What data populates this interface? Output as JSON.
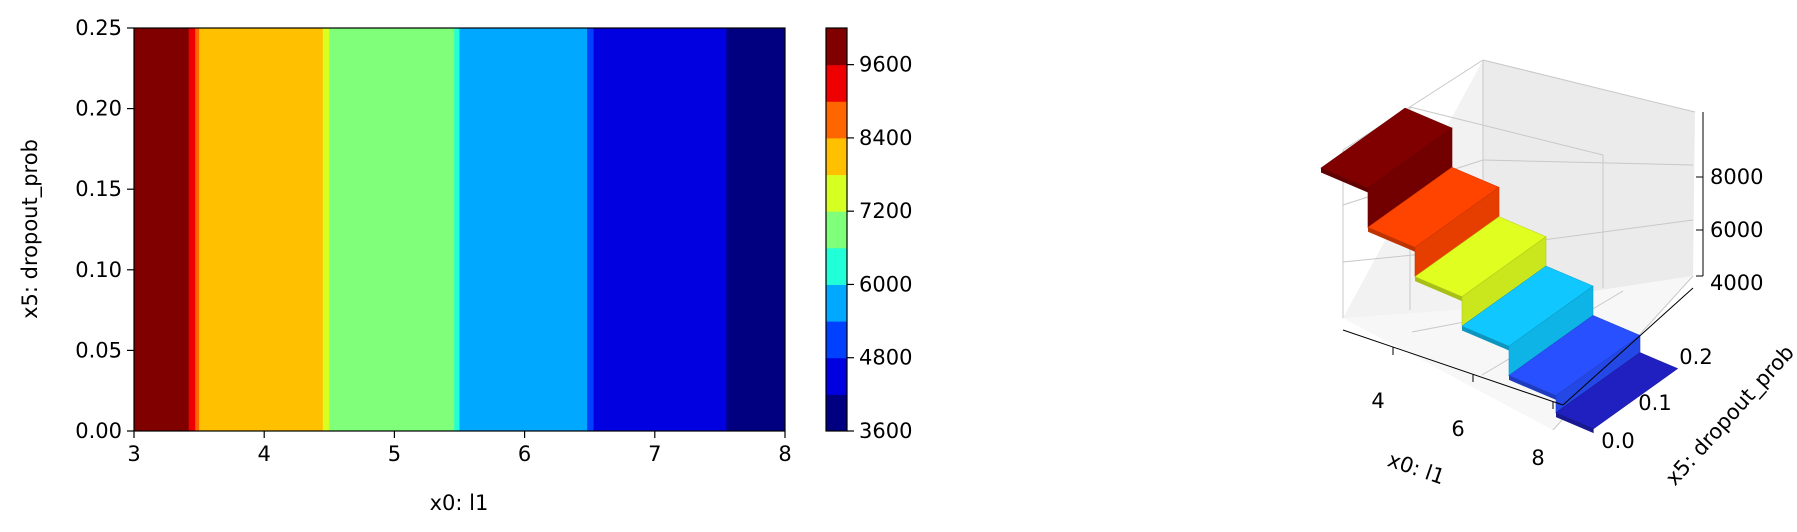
{
  "chart_data": [
    {
      "type": "heatmap",
      "subtype": "filled-contour",
      "xlabel": "x0: l1",
      "ylabel": "x5: dropout_prob",
      "xlim": [
        3,
        8
      ],
      "ylim": [
        0,
        0.25
      ],
      "xticks": [
        "3",
        "4",
        "5",
        "6",
        "7",
        "8"
      ],
      "yticks": [
        "0.00",
        "0.05",
        "0.10",
        "0.15",
        "0.20",
        "0.25"
      ],
      "bands": [
        {
          "x0": 3.0,
          "x1": 3.42,
          "level": 9900
        },
        {
          "x0": 3.42,
          "x1": 3.47,
          "level": 9300
        },
        {
          "x0": 3.47,
          "x1": 3.5,
          "level": 8700
        },
        {
          "x0": 3.5,
          "x1": 4.45,
          "level": 8100
        },
        {
          "x0": 4.45,
          "x1": 4.5,
          "level": 7500
        },
        {
          "x0": 4.5,
          "x1": 5.46,
          "level": 6900
        },
        {
          "x0": 5.46,
          "x1": 5.5,
          "level": 6300
        },
        {
          "x0": 5.5,
          "x1": 6.48,
          "level": 5700
        },
        {
          "x0": 6.48,
          "x1": 6.53,
          "level": 5100
        },
        {
          "x0": 6.53,
          "x1": 7.55,
          "level": 4500
        },
        {
          "x0": 7.55,
          "x1": 8.0,
          "level": 3900
        }
      ],
      "colorbar": {
        "levels": [
          3600,
          4200,
          4800,
          5400,
          6000,
          6600,
          7200,
          7800,
          8400,
          9000,
          9600,
          10200
        ],
        "ticks": [
          "3600",
          "4800",
          "6000",
          "7200",
          "8400",
          "9600"
        ],
        "colors": [
          "#000080",
          "#0000e0",
          "#0040ff",
          "#00a8ff",
          "#20ffd8",
          "#7fff7a",
          "#d6ff22",
          "#ffc000",
          "#ff6600",
          "#ee0000",
          "#800000"
        ]
      },
      "grid": false
    },
    {
      "type": "surface-3d",
      "xlabel": "x0: l1",
      "ylabel": "x5: dropout_prob",
      "xticks": [
        "4",
        "6",
        "8"
      ],
      "yticks": [
        "0.0",
        "0.1",
        "0.2"
      ],
      "zticks": [
        "4000",
        "6000",
        "8000"
      ],
      "steps": [
        {
          "x0": 3,
          "x1": 4,
          "z": 9800,
          "color": "#800000"
        },
        {
          "x0": 4,
          "x1": 5,
          "z": 8200,
          "color": "#ff4400"
        },
        {
          "x0": 5,
          "x1": 6,
          "z": 7000,
          "color": "#e0ff20"
        },
        {
          "x0": 6,
          "x1": 7,
          "z": 5800,
          "color": "#10c8ff"
        },
        {
          "x0": 7,
          "x1": 8,
          "z": 4600,
          "color": "#2850ff"
        },
        {
          "x0": 8,
          "x1": 8.8,
          "z": 3900,
          "color": "#2020c0"
        }
      ],
      "grid": true
    }
  ]
}
